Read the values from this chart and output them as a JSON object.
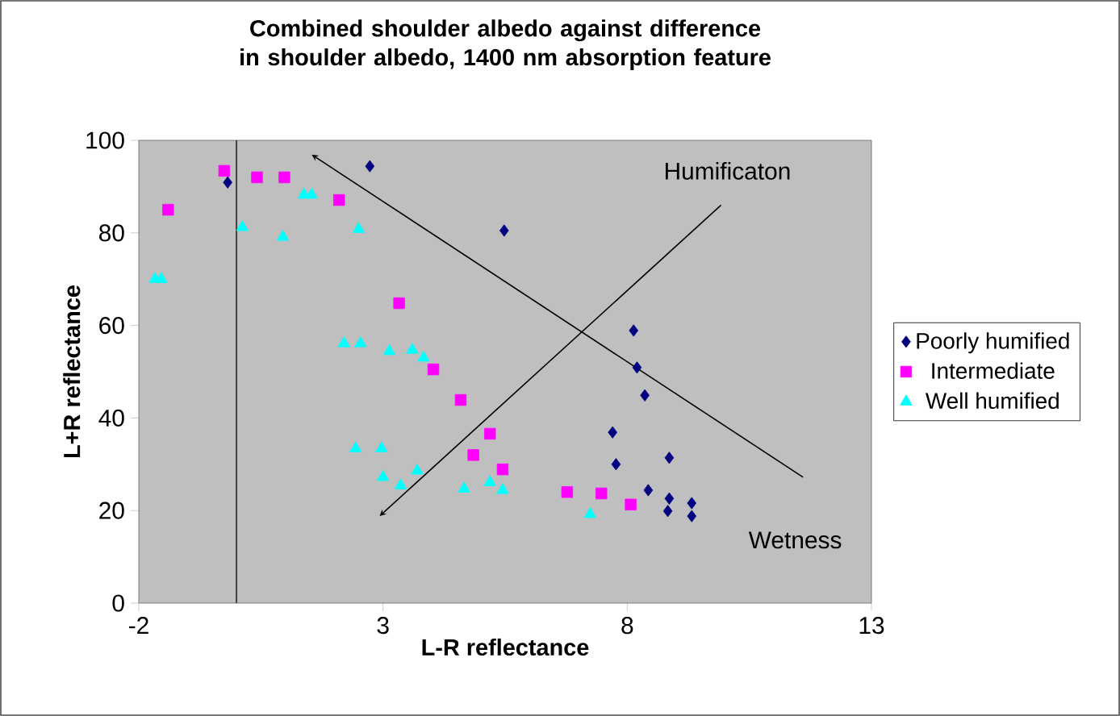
{
  "chart_data": {
    "type": "scatter",
    "title": "Combined shoulder albedo against difference in shoulder albedo, 1400 nm absorption feature",
    "xlabel": "L-R reflectance",
    "ylabel": "L+R reflectance",
    "xlim": [
      -2,
      13
    ],
    "xticks": [
      -2,
      3,
      8,
      13
    ],
    "ylim": [
      0,
      100
    ],
    "yticks": [
      0,
      20,
      40,
      60,
      80,
      100
    ],
    "legend": "right",
    "ref_lines": [
      {
        "axis": "x",
        "value": 0,
        "color": "#404040"
      }
    ],
    "annotations": [
      "Humificaton",
      "Wetness"
    ],
    "series": [
      {
        "name": "Poorly humified",
        "color": "#000080",
        "marker": "diamond",
        "x": [
          -0.18,
          2.73,
          5.48,
          8.13,
          8.2,
          8.36,
          7.7,
          7.77,
          8.86,
          8.43,
          8.86,
          9.32,
          8.83,
          9.32
        ],
        "values": [
          90.9,
          94.4,
          80.5,
          58.9,
          50.9,
          44.9,
          36.9,
          30,
          31.4,
          24.4,
          22.6,
          21.6,
          19.9,
          18.8
        ]
      },
      {
        "name": "Intermediate",
        "color": "#ff00ff",
        "marker": "square",
        "x": [
          -1.4,
          -0.25,
          0.42,
          0.98,
          2.1,
          3.33,
          4.03,
          4.59,
          4.85,
          5.19,
          5.45,
          6.77,
          7.47,
          8.07
        ],
        "values": [
          85,
          93.4,
          92,
          92,
          87.1,
          64.8,
          50.5,
          43.9,
          32,
          36.6,
          28.9,
          24,
          23.7,
          21.3
        ]
      },
      {
        "name": "Well humified",
        "color": "#00ffff",
        "marker": "triangle",
        "x": [
          -1.67,
          -1.54,
          0.12,
          0.95,
          1.38,
          1.54,
          2.5,
          2.2,
          2.54,
          3.13,
          3.6,
          3.83,
          2.44,
          2.97,
          3.0,
          3.36,
          3.7,
          4.66,
          5.19,
          5.45,
          7.24
        ],
        "values": [
          70,
          70,
          81.2,
          79.1,
          88.2,
          88.2,
          80.8,
          56.1,
          56.1,
          54.4,
          54.7,
          53,
          33.4,
          33.4,
          27.2,
          25.4,
          28.6,
          24.7,
          26.1,
          24.4,
          19.2
        ]
      }
    ]
  }
}
